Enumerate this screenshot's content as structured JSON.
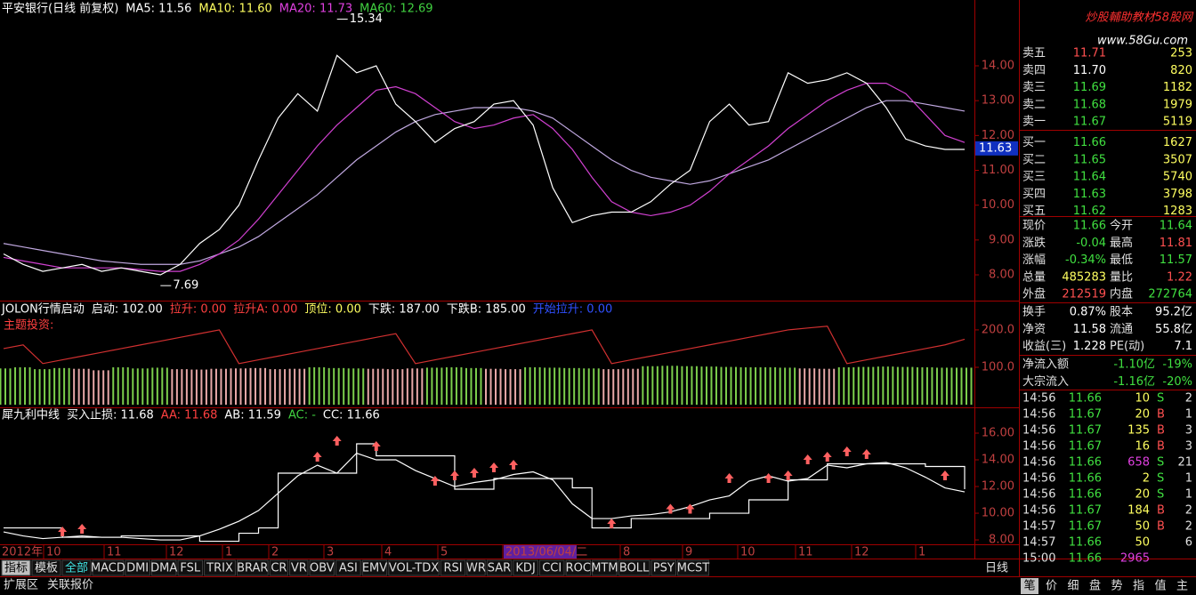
{
  "price_panel": {
    "header": [
      {
        "text": "平安银行(日线 前复权)",
        "color": "#ffffff"
      },
      {
        "text": "MA5: 11.56",
        "color": "#ffffff"
      },
      {
        "text": "MA10: 11.60",
        "color": "#ffff60"
      },
      {
        "text": "MA20: 11.73",
        "color": "#e040e0"
      },
      {
        "text": "MA60: 12.69",
        "color": "#40d040"
      }
    ],
    "ylim": [
      7.26,
      15.43
    ],
    "yticks": [
      {
        "value": 8,
        "label": "8.00"
      },
      {
        "value": 9,
        "label": "9.00"
      },
      {
        "value": 10,
        "label": "10.00"
      },
      {
        "value": 11,
        "label": "11.00"
      },
      {
        "value": 12,
        "label": "12.00"
      },
      {
        "value": 13,
        "label": "13.00"
      },
      {
        "value": 14,
        "label": "14.00"
      }
    ],
    "high": 15.34,
    "low": 7.69,
    "current": 11.63,
    "close": {
      "color": "#ffffff",
      "values": [
        8.6,
        8.3,
        8.1,
        8.2,
        8.3,
        8.1,
        8.2,
        8.1,
        8.0,
        8.3,
        8.9,
        9.3,
        10.0,
        11.3,
        12.5,
        13.2,
        12.7,
        14.3,
        13.8,
        14.0,
        12.9,
        12.4,
        11.8,
        12.2,
        12.4,
        12.9,
        13.0,
        12.3,
        10.5,
        9.5,
        9.7,
        9.8,
        9.8,
        10.1,
        10.6,
        11.0,
        12.4,
        12.9,
        12.3,
        12.4,
        13.8,
        13.5,
        13.6,
        13.8,
        13.5,
        12.8,
        11.9,
        11.7,
        11.6,
        11.6
      ]
    },
    "ma20": {
      "color": "#d040d0",
      "values": [
        8.5,
        8.4,
        8.3,
        8.2,
        8.2,
        8.2,
        8.2,
        8.15,
        8.1,
        8.1,
        8.3,
        8.6,
        9.0,
        9.6,
        10.3,
        11.0,
        11.7,
        12.3,
        12.8,
        13.3,
        13.4,
        13.2,
        12.8,
        12.4,
        12.2,
        12.3,
        12.5,
        12.6,
        12.2,
        11.6,
        10.8,
        10.1,
        9.8,
        9.7,
        9.8,
        10.0,
        10.4,
        10.9,
        11.3,
        11.7,
        12.2,
        12.6,
        13.0,
        13.3,
        13.5,
        13.5,
        13.2,
        12.6,
        12.0,
        11.8
      ]
    },
    "ma60": {
      "color": "#c0a8e0",
      "values": [
        8.9,
        8.8,
        8.7,
        8.6,
        8.5,
        8.4,
        8.35,
        8.3,
        8.3,
        8.3,
        8.4,
        8.6,
        8.8,
        9.1,
        9.5,
        9.9,
        10.3,
        10.8,
        11.3,
        11.7,
        12.1,
        12.4,
        12.6,
        12.7,
        12.8,
        12.8,
        12.8,
        12.7,
        12.5,
        12.1,
        11.7,
        11.3,
        11.0,
        10.8,
        10.7,
        10.6,
        10.7,
        10.9,
        11.1,
        11.3,
        11.6,
        11.9,
        12.2,
        12.5,
        12.8,
        13.0,
        13.0,
        12.9,
        12.8,
        12.7
      ]
    }
  },
  "signal_panel": {
    "header": [
      {
        "text": "JOLON行情启动",
        "color": "#ffffff"
      },
      {
        "text": "启动: 102.00",
        "color": "#ffffff"
      },
      {
        "text": "拉升: 0.00",
        "color": "#ff4040"
      },
      {
        "text": "拉升A: 0.00",
        "color": "#ff4040"
      },
      {
        "text": "顶位: 0.00",
        "color": "#ffff60"
      },
      {
        "text": "下跌: 187.00",
        "color": "#ffffff"
      },
      {
        "text": "下跌B: 185.00",
        "color": "#ffffff"
      },
      {
        "text": "开始拉升: 0.00",
        "color": "#3050ff"
      }
    ],
    "subtitle": "主题投资:",
    "ylim": [
      -7,
      245
    ],
    "yticks": [
      {
        "value": 100,
        "label": "100.0"
      },
      {
        "value": 200,
        "label": "200.0"
      }
    ],
    "green_bars": {
      "color": "#7ccf4c",
      "values": [
        97,
        100,
        95,
        98,
        null,
        null,
        100,
        97,
        99,
        null,
        null,
        null,
        null,
        null,
        null,
        null,
        100,
        98,
        97,
        null,
        null,
        null,
        99,
        100,
        98,
        null,
        null,
        100,
        99,
        98,
        97,
        null,
        null,
        103,
        104,
        103,
        102,
        101,
        100,
        100,
        99,
        null,
        null,
        100,
        101,
        102,
        101,
        100,
        99,
        99
      ]
    },
    "pink_bars": {
      "color": "#e8a8a8",
      "values": [
        null,
        null,
        null,
        null,
        96,
        92,
        null,
        null,
        null,
        95,
        94,
        96,
        97,
        98,
        95,
        96,
        null,
        null,
        null,
        96,
        95,
        97,
        null,
        null,
        null,
        96,
        95,
        null,
        null,
        null,
        null,
        95,
        96,
        null,
        null,
        null,
        null,
        null,
        null,
        null,
        null,
        97,
        96,
        null,
        null,
        null,
        null,
        null,
        null,
        null
      ]
    },
    "trend": {
      "color": "#d03030",
      "values": [
        150,
        160,
        110,
        120,
        130,
        140,
        150,
        160,
        170,
        180,
        190,
        200,
        110,
        120,
        130,
        140,
        150,
        160,
        170,
        180,
        190,
        110,
        120,
        130,
        140,
        150,
        160,
        170,
        180,
        190,
        200,
        110,
        120,
        130,
        140,
        150,
        160,
        170,
        180,
        190,
        200,
        205,
        210,
        110,
        120,
        130,
        140,
        150,
        160,
        175
      ]
    }
  },
  "stop_panel": {
    "header": [
      {
        "text": "犀九利中线",
        "color": "#ffffff"
      },
      {
        "text": "买入止损: 11.68",
        "color": "#ffffff"
      },
      {
        "text": "AA: 11.68",
        "color": "#ff4040"
      },
      {
        "text": "AB: 11.59",
        "color": "#ffffff"
      },
      {
        "text": "AC: -",
        "color": "#40d040"
      },
      {
        "text": "CC: 11.66",
        "color": "#ffffff"
      }
    ],
    "ylim": [
      7.67,
      17.4
    ],
    "yticks": [
      {
        "value": 8,
        "label": "8.00"
      },
      {
        "value": 10,
        "label": "10.00"
      },
      {
        "value": 12,
        "label": "12.00"
      },
      {
        "value": 14,
        "label": "14.00"
      },
      {
        "value": 16,
        "label": "16.00"
      }
    ],
    "cc": {
      "color": "#ffffff",
      "values": [
        8.6,
        8.3,
        8.1,
        8.2,
        8.3,
        8.2,
        8.2,
        8.1,
        8.0,
        8.0,
        8.3,
        8.8,
        9.4,
        10.2,
        11.5,
        12.8,
        13.6,
        13.0,
        14.5,
        14.0,
        14.0,
        13.2,
        12.6,
        12.0,
        12.3,
        12.5,
        12.9,
        13.1,
        12.5,
        10.7,
        9.6,
        9.6,
        9.8,
        9.9,
        10.1,
        10.5,
        11.0,
        11.3,
        12.4,
        12.8,
        12.4,
        12.6,
        13.6,
        13.4,
        13.7,
        13.8,
        13.4,
        12.7,
        11.9,
        11.6
      ]
    },
    "stop": {
      "color": "#ffffff",
      "values": [
        8.9,
        8.9,
        8.9,
        8.2,
        8.2,
        8.2,
        8.3,
        8.3,
        8.3,
        8.3,
        7.9,
        7.9,
        8.5,
        8.9,
        13.0,
        13.0,
        13.0,
        13.0,
        15.2,
        14.3,
        14.3,
        14.3,
        14.3,
        11.8,
        11.8,
        12.6,
        12.6,
        12.6,
        12.6,
        11.9,
        8.9,
        8.9,
        9.6,
        9.6,
        9.6,
        9.6,
        10.0,
        10.0,
        11.0,
        11.0,
        12.5,
        12.5,
        13.7,
        13.7,
        13.7,
        13.7,
        13.7,
        13.5,
        13.5,
        11.8
      ]
    },
    "signals": {
      "color": "#ff6060",
      "values": [
        null,
        null,
        null,
        8.6,
        8.8,
        null,
        null,
        null,
        null,
        null,
        null,
        null,
        null,
        null,
        null,
        null,
        14.2,
        15.4,
        null,
        15.0,
        null,
        null,
        12.4,
        12.8,
        13.0,
        13.4,
        13.6,
        null,
        null,
        null,
        null,
        9.2,
        null,
        null,
        10.3,
        10.3,
        null,
        12.6,
        null,
        12.6,
        12.8,
        14.0,
        14.2,
        14.6,
        14.4,
        null,
        null,
        null,
        12.8,
        null
      ]
    }
  },
  "date_axis": [
    "2012年",
    "10",
    "11",
    "12",
    "1",
    "2",
    "3",
    "4",
    "5",
    "2013/06/04/二",
    "8",
    "9",
    "10",
    "11",
    "12",
    "1"
  ],
  "period": "日线",
  "tabs": [
    "指标",
    "模板",
    "全部",
    "MACD",
    "DMI",
    "DMA",
    "FSL",
    "TRIX",
    "BRAR",
    "CR",
    "VR",
    "OBV",
    "ASI",
    "EMV",
    "VOL-TDX",
    "RSI",
    "WR",
    "SAR",
    "KDJ",
    "CCI",
    "ROC",
    "MTM",
    "BOLL",
    "PSY",
    "MCST"
  ],
  "bottom_tabs": [
    "扩展区",
    "关联报价"
  ],
  "right_tabs": [
    "笔",
    "价",
    "细",
    "盘",
    "势",
    "指",
    "值",
    "主"
  ],
  "watermark": {
    "title": "炒股輔助教材58股网",
    "url": "www.58Gu.com"
  },
  "order_book": [
    {
      "label": "卖五",
      "price": "11.71",
      "volume": "253",
      "color": "#ff5050"
    },
    {
      "label": "卖四",
      "price": "11.70",
      "volume": "820",
      "color": "#ffffff"
    },
    {
      "label": "卖三",
      "price": "11.69",
      "volume": "1182",
      "color": "#40e040"
    },
    {
      "label": "卖二",
      "price": "11.68",
      "volume": "1979",
      "color": "#40e040"
    },
    {
      "label": "卖一",
      "price": "11.67",
      "volume": "5119",
      "color": "#40e040"
    },
    {
      "label": "买一",
      "price": "11.66",
      "volume": "1627",
      "color": "#40e040"
    },
    {
      "label": "买二",
      "price": "11.65",
      "volume": "3507",
      "color": "#40e040"
    },
    {
      "label": "买三",
      "price": "11.64",
      "volume": "5740",
      "color": "#40e040"
    },
    {
      "label": "买四",
      "price": "11.63",
      "volume": "3798",
      "color": "#40e040"
    },
    {
      "label": "买五",
      "price": "11.62",
      "volume": "1283",
      "color": "#40e040"
    }
  ],
  "quote": [
    [
      {
        "label": "现价",
        "value": "11.66",
        "color": "#40e040"
      },
      {
        "label": "今开",
        "value": "11.64",
        "color": "#40e040"
      }
    ],
    [
      {
        "label": "涨跌",
        "value": "-0.04",
        "color": "#40e040"
      },
      {
        "label": "最高",
        "value": "11.81",
        "color": "#ff5050"
      }
    ],
    [
      {
        "label": "涨幅",
        "value": "-0.34%",
        "color": "#40e040"
      },
      {
        "label": "最低",
        "value": "11.57",
        "color": "#40e040"
      }
    ],
    [
      {
        "label": "总量",
        "value": "485283",
        "color": "#ffff60"
      },
      {
        "label": "量比",
        "value": "1.22",
        "color": "#ff5050"
      }
    ],
    [
      {
        "label": "外盘",
        "value": "212519",
        "color": "#ff5050"
      },
      {
        "label": "内盘",
        "value": "272764",
        "color": "#40e040"
      }
    ]
  ],
  "finance": [
    [
      {
        "label": "换手",
        "value": "0.87%",
        "color": "#ffffff"
      },
      {
        "label": "股本",
        "value": "95.2亿",
        "color": "#ffffff"
      }
    ],
    [
      {
        "label": "净资",
        "value": "11.58",
        "color": "#ffffff"
      },
      {
        "label": "流通",
        "value": "55.8亿",
        "color": "#ffffff"
      }
    ],
    [
      {
        "label": "收益(三)",
        "value": "1.228",
        "color": "#ffffff"
      },
      {
        "label": "PE(动)",
        "value": "7.1",
        "color": "#ffffff"
      }
    ]
  ],
  "flow": [
    {
      "label": "净流入额",
      "value": "-1.10亿",
      "pct": "-19%",
      "color": "#40e040"
    },
    {
      "label": "大宗流入",
      "value": "-1.16亿",
      "pct": "-20%",
      "color": "#40e040"
    }
  ],
  "ticks": [
    {
      "time": "14:56",
      "price": "11.66",
      "volume": "10",
      "side": "S",
      "count": "2",
      "color": "#40e040",
      "volume_color": "#ffff60",
      "side_color": "#40e040"
    },
    {
      "time": "14:56",
      "price": "11.67",
      "volume": "20",
      "side": "B",
      "count": "1",
      "color": "#40e040",
      "volume_color": "#ffff60",
      "side_color": "#ff5050"
    },
    {
      "time": "14:56",
      "price": "11.67",
      "volume": "135",
      "side": "B",
      "count": "3",
      "color": "#40e040",
      "volume_color": "#ffff60",
      "side_color": "#ff5050"
    },
    {
      "time": "14:56",
      "price": "11.67",
      "volume": "16",
      "side": "B",
      "count": "3",
      "color": "#40e040",
      "volume_color": "#ffff60",
      "side_color": "#ff5050"
    },
    {
      "time": "14:56",
      "price": "11.66",
      "volume": "658",
      "side": "S",
      "count": "21",
      "color": "#40e040",
      "volume_color": "#e040e0",
      "side_color": "#40e040"
    },
    {
      "time": "14:56",
      "price": "11.66",
      "volume": "2",
      "side": "S",
      "count": "1",
      "color": "#40e040",
      "volume_color": "#ffff60",
      "side_color": "#40e040"
    },
    {
      "time": "14:56",
      "price": "11.66",
      "volume": "20",
      "side": "S",
      "count": "1",
      "color": "#40e040",
      "volume_color": "#ffff60",
      "side_color": "#40e040"
    },
    {
      "time": "14:56",
      "price": "11.67",
      "volume": "184",
      "side": "B",
      "count": "2",
      "color": "#40e040",
      "volume_color": "#ffff60",
      "side_color": "#ff5050"
    },
    {
      "time": "14:57",
      "price": "11.67",
      "volume": "50",
      "side": "B",
      "count": "2",
      "color": "#40e040",
      "volume_color": "#ffff60",
      "side_color": "#ff5050"
    },
    {
      "time": "14:57",
      "price": "11.66",
      "volume": "50",
      "count": "6",
      "color": "#40e040",
      "volume_color": "#ffff60"
    },
    {
      "time": "15:00",
      "price": "11.66",
      "volume": "2965",
      "color": "#40e040",
      "volume_color": "#e040e0"
    }
  ]
}
